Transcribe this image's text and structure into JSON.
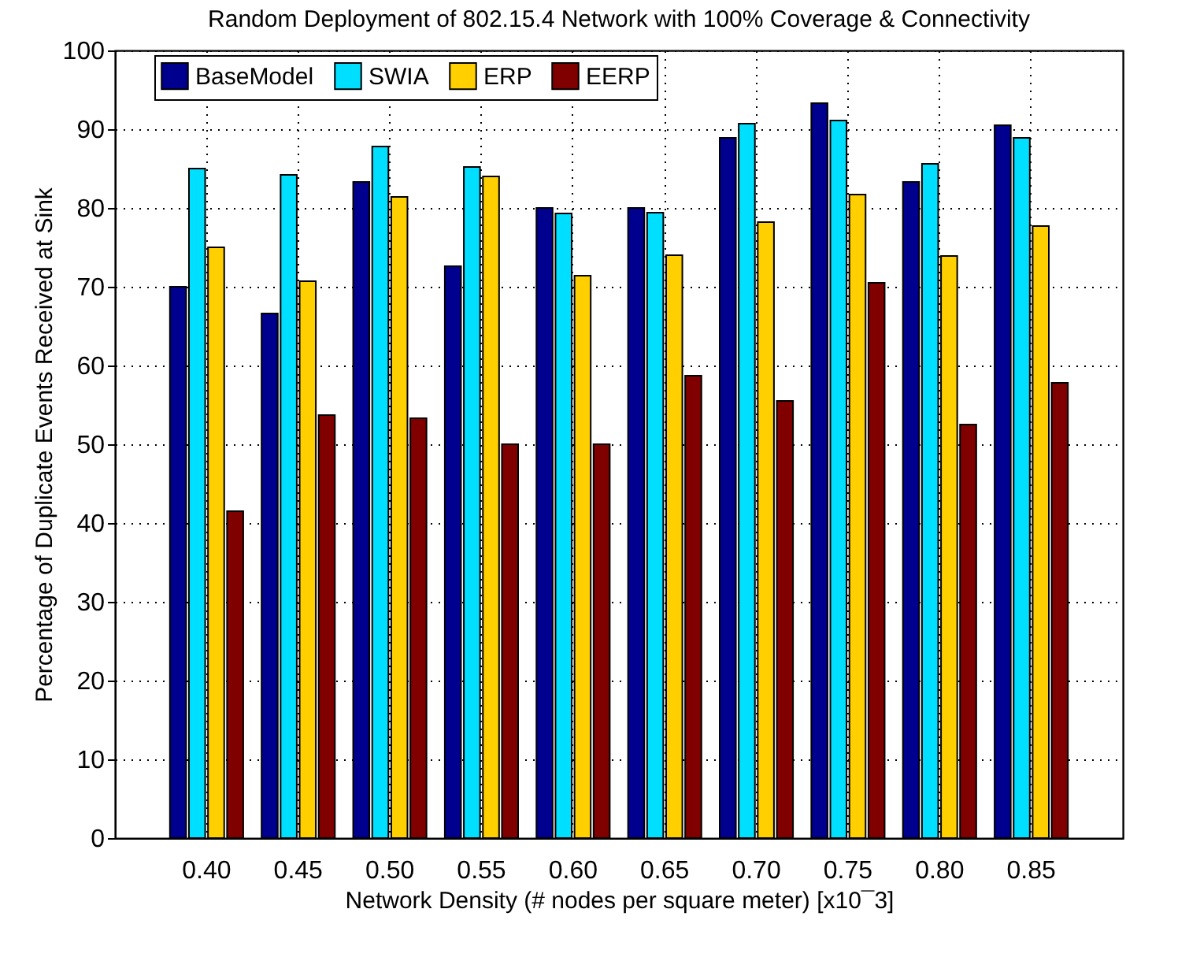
{
  "chart_data": {
    "type": "bar",
    "title": "Random Deployment of 802.15.4 Network with 100% Coverage & Connectivity",
    "xlabel": "Network Density (# nodes per square meter) [x10¯3]",
    "ylabel": "Percentage of Duplicate Events Received at Sink",
    "categories": [
      "0.40",
      "0.45",
      "0.50",
      "0.55",
      "0.60",
      "0.65",
      "0.70",
      "0.75",
      "0.80",
      "0.85"
    ],
    "series": [
      {
        "name": "BaseModel",
        "color": "#00008f",
        "values": [
          70,
          66.6,
          83.3,
          72.6,
          80,
          80,
          88.9,
          93.3,
          83.3,
          90.5
        ]
      },
      {
        "name": "SWIA",
        "color": "#00dfff",
        "values": [
          85,
          84.2,
          87.8,
          85.2,
          79.3,
          79.4,
          90.7,
          91.1,
          85.6,
          88.9
        ]
      },
      {
        "name": "ERP",
        "color": "#ffcf00",
        "values": [
          75,
          70.7,
          81.4,
          84,
          71.4,
          74,
          78.2,
          81.7,
          73.9,
          77.7
        ]
      },
      {
        "name": "EERP",
        "color": "#800000",
        "values": [
          41.5,
          53.7,
          53.3,
          50,
          50,
          58.7,
          55.5,
          70.5,
          52.5,
          57.8
        ]
      }
    ],
    "ylim": [
      0,
      100
    ],
    "yticks": [
      0,
      10,
      20,
      30,
      40,
      50,
      60,
      70,
      80,
      90,
      100
    ],
    "grid": true,
    "legend": "top"
  }
}
